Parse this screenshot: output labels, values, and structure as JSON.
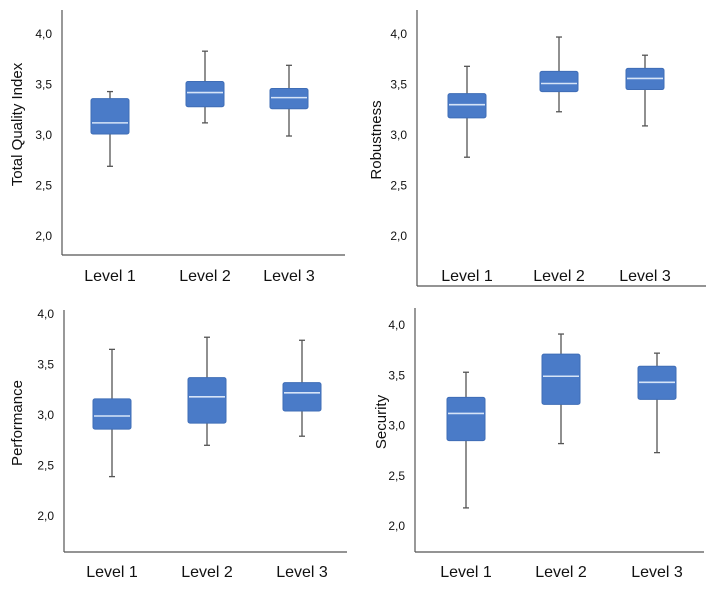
{
  "colors": {
    "box_fill": "#4a7bc8",
    "box_stroke": "#3f6db6",
    "median": "#d6e4f7",
    "whisker": "#555555",
    "axis": "#555555",
    "text": "#111111"
  },
  "chart_data": [
    {
      "type": "boxplot",
      "ylabel": "Total Quality Index",
      "categories": [
        "Level 1",
        "Level 2",
        "Level 3"
      ],
      "yticks": [
        "4,0",
        "3,5",
        "3,0",
        "2,5",
        "2,0"
      ],
      "ylim": [
        1.9,
        4.2
      ],
      "boxes": [
        {
          "min": 2.69,
          "q1": 3.01,
          "median": 3.12,
          "q3": 3.36,
          "max": 3.43
        },
        {
          "min": 3.12,
          "q1": 3.28,
          "median": 3.42,
          "q3": 3.53,
          "max": 3.83
        },
        {
          "min": 2.99,
          "q1": 3.26,
          "median": 3.37,
          "q3": 3.46,
          "max": 3.69
        }
      ]
    },
    {
      "type": "boxplot",
      "ylabel": "Robustness",
      "categories": [
        "Level 1",
        "Level 2",
        "Level 3"
      ],
      "yticks": [
        "4,0",
        "3,5",
        "3,0",
        "2,5",
        "2,0"
      ],
      "ylim": [
        1.8,
        4.2
      ],
      "boxes": [
        {
          "min": 2.78,
          "q1": 3.17,
          "median": 3.3,
          "q3": 3.41,
          "max": 3.68
        },
        {
          "min": 3.23,
          "q1": 3.43,
          "median": 3.51,
          "q3": 3.63,
          "max": 3.97
        },
        {
          "min": 3.09,
          "q1": 3.45,
          "median": 3.56,
          "q3": 3.66,
          "max": 3.79
        }
      ]
    },
    {
      "type": "boxplot",
      "ylabel": "Performance",
      "categories": [
        "Level 1",
        "Level 2",
        "Level 3"
      ],
      "yticks": [
        "4,0",
        "3,5",
        "3,0",
        "2,5",
        "2,0"
      ],
      "ylim": [
        1.8,
        4.0
      ],
      "boxes": [
        {
          "min": 2.39,
          "q1": 2.86,
          "median": 2.99,
          "q3": 3.16,
          "max": 3.65
        },
        {
          "min": 2.7,
          "q1": 2.92,
          "median": 3.18,
          "q3": 3.37,
          "max": 3.77
        },
        {
          "min": 2.79,
          "q1": 3.04,
          "median": 3.22,
          "q3": 3.32,
          "max": 3.74
        }
      ]
    },
    {
      "type": "boxplot",
      "ylabel": "Security",
      "categories": [
        "Level 1",
        "Level 2",
        "Level 3"
      ],
      "yticks": [
        "4,0",
        "3,5",
        "3,0",
        "2,5",
        "2,0"
      ],
      "ylim": [
        1.8,
        4.1
      ],
      "boxes": [
        {
          "min": 2.18,
          "q1": 2.85,
          "median": 3.12,
          "q3": 3.28,
          "max": 3.53
        },
        {
          "min": 2.82,
          "q1": 3.21,
          "median": 3.49,
          "q3": 3.71,
          "max": 3.91
        },
        {
          "min": 2.73,
          "q1": 3.26,
          "median": 3.43,
          "q3": 3.59,
          "max": 3.72
        }
      ]
    }
  ]
}
